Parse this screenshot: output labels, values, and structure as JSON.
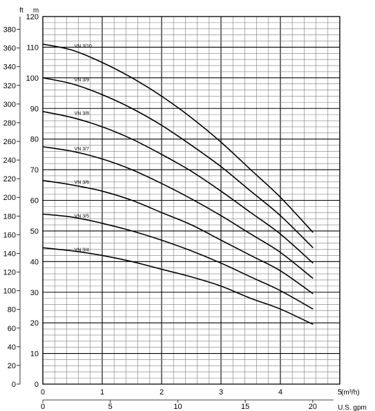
{
  "chart_data": {
    "type": "line",
    "title": "",
    "x_axis": {
      "unit_label": "(m³/h)",
      "range": [
        0,
        5
      ],
      "ticks": [
        "0",
        "1",
        "2",
        "3",
        "4",
        "5"
      ]
    },
    "x2_axis": {
      "unit_label": "U.S. gpm",
      "range": [
        0,
        22.0
      ],
      "ticks": [
        "0",
        "5",
        "10",
        "15",
        "20"
      ]
    },
    "y_axis": {
      "unit_label": "m",
      "range": [
        0,
        120
      ],
      "ticks": [
        "0",
        "10",
        "20",
        "30",
        "40",
        "50",
        "60",
        "70",
        "80",
        "90",
        "100",
        "110",
        "120"
      ]
    },
    "y2_axis": {
      "unit_label": "ft",
      "range": [
        0,
        393.7
      ],
      "ticks": [
        "0",
        "20",
        "40",
        "60",
        "80",
        "100",
        "120",
        "140",
        "160",
        "180",
        "200",
        "220",
        "240",
        "260",
        "280",
        "300",
        "320",
        "340",
        "360",
        "380"
      ]
    },
    "grid": true,
    "series": [
      {
        "name": "VN 3/10",
        "x": [
          0,
          0.5,
          1,
          1.5,
          2,
          2.5,
          3,
          3.5,
          4,
          4.55
        ],
        "y": [
          111,
          109,
          105,
          100,
          94,
          87,
          79,
          70,
          61,
          49.5
        ]
      },
      {
        "name": "VN 3/9",
        "x": [
          0,
          0.5,
          1,
          1.5,
          2,
          2.5,
          3,
          3.5,
          4,
          4.55
        ],
        "y": [
          100,
          98,
          94.5,
          90,
          84.5,
          78,
          71,
          63,
          55,
          44.5
        ]
      },
      {
        "name": "VN 3/8",
        "x": [
          0,
          0.5,
          1,
          1.5,
          2,
          2.5,
          3,
          3.5,
          4,
          4.55
        ],
        "y": [
          89,
          87,
          84,
          80,
          75,
          69.5,
          63,
          56,
          49,
          39.5
        ]
      },
      {
        "name": "VN 3/7",
        "x": [
          0,
          0.5,
          1,
          1.5,
          2,
          2.5,
          3,
          3.5,
          4,
          4.55
        ],
        "y": [
          77.5,
          76,
          73.5,
          70,
          65.5,
          60.5,
          55,
          49,
          43,
          34.5
        ]
      },
      {
        "name": "VN 3/6",
        "x": [
          0,
          0.5,
          1,
          1.5,
          2,
          2.5,
          3,
          3.5,
          4,
          4.55
        ],
        "y": [
          66.5,
          65,
          63,
          60,
          56,
          52,
          47,
          42,
          37,
          29.5
        ]
      },
      {
        "name": "VN 3/5",
        "x": [
          0,
          0.5,
          1,
          1.5,
          2,
          2.5,
          3,
          3.5,
          4,
          4.55
        ],
        "y": [
          55.5,
          54.5,
          52.5,
          50,
          47,
          43.5,
          39.5,
          35,
          30.5,
          24.5
        ]
      },
      {
        "name": "VN 3/4",
        "x": [
          0,
          0.5,
          1,
          1.5,
          2,
          2.5,
          3,
          3.5,
          4,
          4.55
        ],
        "y": [
          44.5,
          43.5,
          42,
          40,
          37.5,
          35,
          32,
          28,
          24.5,
          19.5
        ]
      }
    ]
  }
}
